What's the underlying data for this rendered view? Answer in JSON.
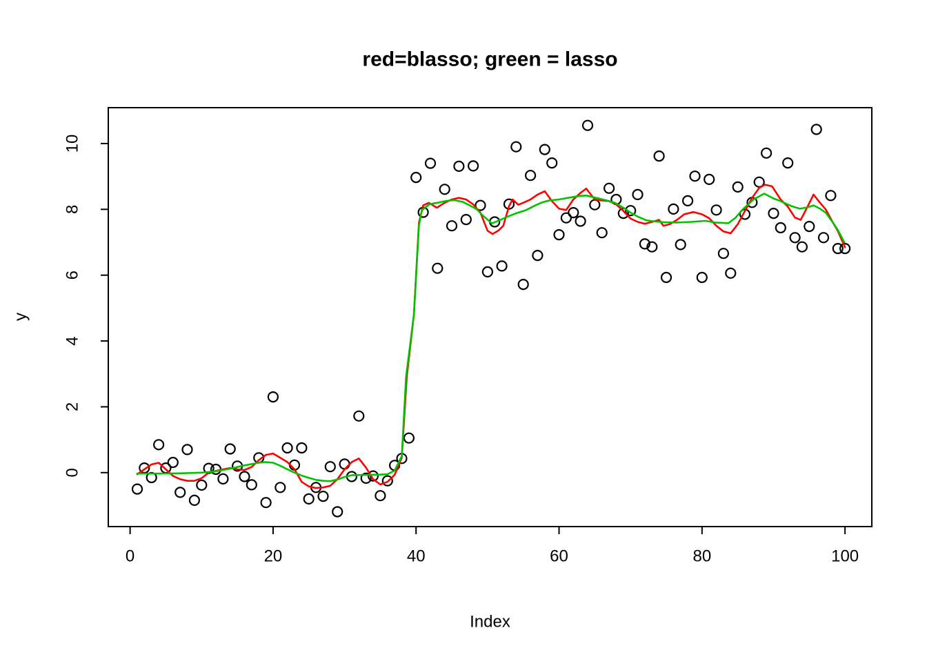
{
  "page": {
    "background": "#ffffff"
  },
  "chart_data": {
    "type": "scatter",
    "title": "red=blasso; green = lasso",
    "xlabel": "Index",
    "ylabel": "y",
    "xlim": [
      -3.05,
      103.75
    ],
    "ylim": [
      -1.64,
      11.09
    ],
    "x_ticks": [
      0,
      20,
      40,
      60,
      80,
      100
    ],
    "y_ticks": [
      0,
      2,
      4,
      6,
      8,
      10
    ],
    "grid": false,
    "legend_position": "none",
    "point_style": {
      "shape": "open-circle",
      "color": "#000000",
      "radius": 7
    },
    "points": [
      [
        1,
        -0.5
      ],
      [
        2,
        0.14
      ],
      [
        3,
        -0.15
      ],
      [
        4,
        0.85
      ],
      [
        5,
        0.14
      ],
      [
        6,
        0.31
      ],
      [
        7,
        -0.6
      ],
      [
        8,
        0.7
      ],
      [
        9,
        -0.84
      ],
      [
        10,
        -0.38
      ],
      [
        11,
        0.13
      ],
      [
        12,
        0.1
      ],
      [
        13,
        -0.19
      ],
      [
        14,
        0.72
      ],
      [
        15,
        0.2
      ],
      [
        16,
        -0.12
      ],
      [
        17,
        -0.37
      ],
      [
        18,
        0.45
      ],
      [
        19,
        -0.91
      ],
      [
        20,
        2.3
      ],
      [
        21,
        -0.45
      ],
      [
        22,
        0.75
      ],
      [
        23,
        0.23
      ],
      [
        24,
        0.75
      ],
      [
        25,
        -0.8
      ],
      [
        26,
        -0.45
      ],
      [
        27,
        -0.72
      ],
      [
        28,
        0.18
      ],
      [
        29,
        -1.19
      ],
      [
        30,
        0.26
      ],
      [
        31,
        -0.12
      ],
      [
        32,
        1.72
      ],
      [
        33,
        -0.17
      ],
      [
        34,
        -0.1
      ],
      [
        35,
        -0.7
      ],
      [
        36,
        -0.25
      ],
      [
        37,
        0.22
      ],
      [
        38,
        0.43
      ],
      [
        39,
        1.05
      ],
      [
        40,
        8.97
      ],
      [
        41,
        7.91
      ],
      [
        42,
        9.4
      ],
      [
        43,
        6.21
      ],
      [
        44,
        8.61
      ],
      [
        45,
        7.5
      ],
      [
        46,
        9.31
      ],
      [
        47,
        7.69
      ],
      [
        48,
        9.32
      ],
      [
        49,
        8.12
      ],
      [
        50,
        6.1
      ],
      [
        51,
        7.62
      ],
      [
        52,
        6.28
      ],
      [
        53,
        8.16
      ],
      [
        54,
        9.9
      ],
      [
        55,
        5.72
      ],
      [
        56,
        9.03
      ],
      [
        57,
        6.6
      ],
      [
        58,
        9.82
      ],
      [
        59,
        9.41
      ],
      [
        60,
        7.23
      ],
      [
        61,
        7.74
      ],
      [
        62,
        7.9
      ],
      [
        63,
        7.64
      ],
      [
        64,
        10.55
      ],
      [
        65,
        8.14
      ],
      [
        66,
        7.29
      ],
      [
        67,
        8.64
      ],
      [
        68,
        8.3
      ],
      [
        69,
        7.88
      ],
      [
        70,
        7.96
      ],
      [
        71,
        8.45
      ],
      [
        72,
        6.95
      ],
      [
        73,
        6.86
      ],
      [
        74,
        9.62
      ],
      [
        75,
        5.93
      ],
      [
        76,
        8.01
      ],
      [
        77,
        6.93
      ],
      [
        78,
        8.26
      ],
      [
        79,
        9.01
      ],
      [
        80,
        5.93
      ],
      [
        81,
        8.91
      ],
      [
        82,
        7.98
      ],
      [
        83,
        6.66
      ],
      [
        84,
        6.06
      ],
      [
        85,
        8.68
      ],
      [
        86,
        7.85
      ],
      [
        87,
        8.21
      ],
      [
        88,
        8.83
      ],
      [
        89,
        9.71
      ],
      [
        90,
        7.88
      ],
      [
        91,
        7.44
      ],
      [
        92,
        9.41
      ],
      [
        93,
        7.14
      ],
      [
        94,
        6.86
      ],
      [
        95,
        7.48
      ],
      [
        96,
        10.43
      ],
      [
        97,
        7.14
      ],
      [
        98,
        8.42
      ],
      [
        99,
        6.81
      ],
      [
        100,
        6.81
      ]
    ],
    "series": [
      {
        "name": "blasso",
        "color": "#ff0000",
        "path": [
          [
            1,
            -0.05
          ],
          [
            2,
            0.1
          ],
          [
            3,
            0.25
          ],
          [
            4,
            0.3
          ],
          [
            5,
            0.1
          ],
          [
            6,
            -0.1
          ],
          [
            7,
            -0.2
          ],
          [
            8,
            -0.25
          ],
          [
            9,
            -0.25
          ],
          [
            10,
            -0.17
          ],
          [
            11,
            0
          ],
          [
            12,
            0.05
          ],
          [
            13,
            0.1
          ],
          [
            14,
            0.14
          ],
          [
            15,
            0.1
          ],
          [
            16,
            0.08
          ],
          [
            17,
            0.17
          ],
          [
            18,
            0.38
          ],
          [
            19,
            0.54
          ],
          [
            20,
            0.58
          ],
          [
            21,
            0.45
          ],
          [
            22,
            0.32
          ],
          [
            23,
            0.1
          ],
          [
            24,
            -0.28
          ],
          [
            25,
            -0.42
          ],
          [
            26,
            -0.47
          ],
          [
            27,
            -0.45
          ],
          [
            28,
            -0.4
          ],
          [
            29,
            -0.2
          ],
          [
            30,
            0.1
          ],
          [
            31,
            0.32
          ],
          [
            32,
            0.43
          ],
          [
            33,
            0.15
          ],
          [
            34,
            -0.2
          ],
          [
            35,
            -0.36
          ],
          [
            36,
            -0.28
          ],
          [
            37,
            -0.07
          ],
          [
            38,
            0.45
          ],
          [
            38.7,
            2.9
          ],
          [
            39.7,
            4.8
          ],
          [
            40.4,
            7.6
          ],
          [
            41,
            8.12
          ],
          [
            41.8,
            8.2
          ],
          [
            42.9,
            8.05
          ],
          [
            44,
            8.2
          ],
          [
            45,
            8.3
          ],
          [
            46,
            8.35
          ],
          [
            47,
            8.3
          ],
          [
            48,
            8.15
          ],
          [
            49,
            7.9
          ],
          [
            50,
            7.35
          ],
          [
            50.7,
            7.25
          ],
          [
            51.5,
            7.35
          ],
          [
            52.2,
            7.5
          ],
          [
            53,
            8.1
          ],
          [
            53.5,
            8.3
          ],
          [
            54.3,
            8.14
          ],
          [
            55,
            8.2
          ],
          [
            56,
            8.3
          ],
          [
            57,
            8.45
          ],
          [
            58,
            8.55
          ],
          [
            59,
            8.25
          ],
          [
            60,
            8.02
          ],
          [
            61,
            7.98
          ],
          [
            62,
            8.3
          ],
          [
            63,
            8.5
          ],
          [
            63.8,
            8.63
          ],
          [
            65,
            8.3
          ],
          [
            66,
            8.27
          ],
          [
            67,
            8.25
          ],
          [
            68,
            8.15
          ],
          [
            69,
            7.95
          ],
          [
            70,
            7.72
          ],
          [
            71,
            7.62
          ],
          [
            72,
            7.56
          ],
          [
            73,
            7.62
          ],
          [
            74,
            7.68
          ],
          [
            74.6,
            7.5
          ],
          [
            75.5,
            7.55
          ],
          [
            76.5,
            7.68
          ],
          [
            77.5,
            7.85
          ],
          [
            78.8,
            7.92
          ],
          [
            80,
            7.85
          ],
          [
            81,
            7.73
          ],
          [
            82,
            7.5
          ],
          [
            83,
            7.33
          ],
          [
            84,
            7.27
          ],
          [
            85,
            7.55
          ],
          [
            86,
            7.95
          ],
          [
            87,
            8.35
          ],
          [
            88,
            8.65
          ],
          [
            88.8,
            8.75
          ],
          [
            89.8,
            8.7
          ],
          [
            91,
            8.3
          ],
          [
            92,
            8.08
          ],
          [
            93,
            7.75
          ],
          [
            93.8,
            7.68
          ],
          [
            94.8,
            8.1
          ],
          [
            95.6,
            8.45
          ],
          [
            96.5,
            8.2
          ],
          [
            97.3,
            8
          ],
          [
            98.3,
            7.6
          ],
          [
            99,
            7.34
          ],
          [
            100,
            6.85
          ]
        ]
      },
      {
        "name": "lasso",
        "color": "#00c300",
        "path": [
          [
            1,
            -0.03
          ],
          [
            4,
            -0.03
          ],
          [
            7,
            -0.02
          ],
          [
            10,
            0
          ],
          [
            12,
            0.04
          ],
          [
            14,
            0.12
          ],
          [
            16,
            0.22
          ],
          [
            18,
            0.3
          ],
          [
            19,
            0.32
          ],
          [
            20,
            0.3
          ],
          [
            21,
            0.21
          ],
          [
            22,
            0.1
          ],
          [
            23,
            0
          ],
          [
            24,
            -0.09
          ],
          [
            25,
            -0.16
          ],
          [
            26,
            -0.22
          ],
          [
            27,
            -0.25
          ],
          [
            28,
            -0.26
          ],
          [
            29,
            -0.21
          ],
          [
            30,
            -0.13
          ],
          [
            31,
            -0.08
          ],
          [
            33,
            -0.07
          ],
          [
            35,
            -0.06
          ],
          [
            36,
            -0.05
          ],
          [
            37,
            0.06
          ],
          [
            38,
            0.5
          ],
          [
            38.6,
            2.9
          ],
          [
            39.7,
            4.8
          ],
          [
            40.4,
            7.5
          ],
          [
            40.8,
            7.97
          ],
          [
            41.9,
            8.16
          ],
          [
            43,
            8.2
          ],
          [
            44.3,
            8.26
          ],
          [
            45.3,
            8.28
          ],
          [
            46.5,
            8.23
          ],
          [
            47.5,
            8.12
          ],
          [
            48.5,
            8
          ],
          [
            49.3,
            7.82
          ],
          [
            50.6,
            7.57
          ],
          [
            51.8,
            7.68
          ],
          [
            52.7,
            7.77
          ],
          [
            54,
            7.88
          ],
          [
            55.3,
            7.97
          ],
          [
            56.5,
            8.1
          ],
          [
            57.5,
            8.2
          ],
          [
            58.6,
            8.27
          ],
          [
            60,
            8.3
          ],
          [
            61.5,
            8.36
          ],
          [
            63,
            8.41
          ],
          [
            63.8,
            8.42
          ],
          [
            65,
            8.36
          ],
          [
            66.5,
            8.28
          ],
          [
            67.8,
            8.2
          ],
          [
            69,
            8.05
          ],
          [
            70,
            7.9
          ],
          [
            71,
            7.78
          ],
          [
            72.2,
            7.67
          ],
          [
            73.5,
            7.63
          ],
          [
            74.7,
            7.61
          ],
          [
            76.5,
            7.6
          ],
          [
            78.5,
            7.62
          ],
          [
            80.5,
            7.65
          ],
          [
            81.8,
            7.6
          ],
          [
            83.7,
            7.58
          ],
          [
            84.7,
            7.75
          ],
          [
            85.7,
            8
          ],
          [
            87.2,
            8.3
          ],
          [
            88.7,
            8.48
          ],
          [
            90,
            8.33
          ],
          [
            91,
            8.25
          ],
          [
            92.5,
            8.1
          ],
          [
            93.7,
            8.02
          ],
          [
            94.7,
            8.06
          ],
          [
            95.6,
            8.12
          ],
          [
            96.5,
            8.02
          ],
          [
            97.3,
            7.9
          ],
          [
            98.3,
            7.6
          ],
          [
            99,
            7.37
          ],
          [
            99.9,
            7
          ]
        ]
      }
    ]
  }
}
